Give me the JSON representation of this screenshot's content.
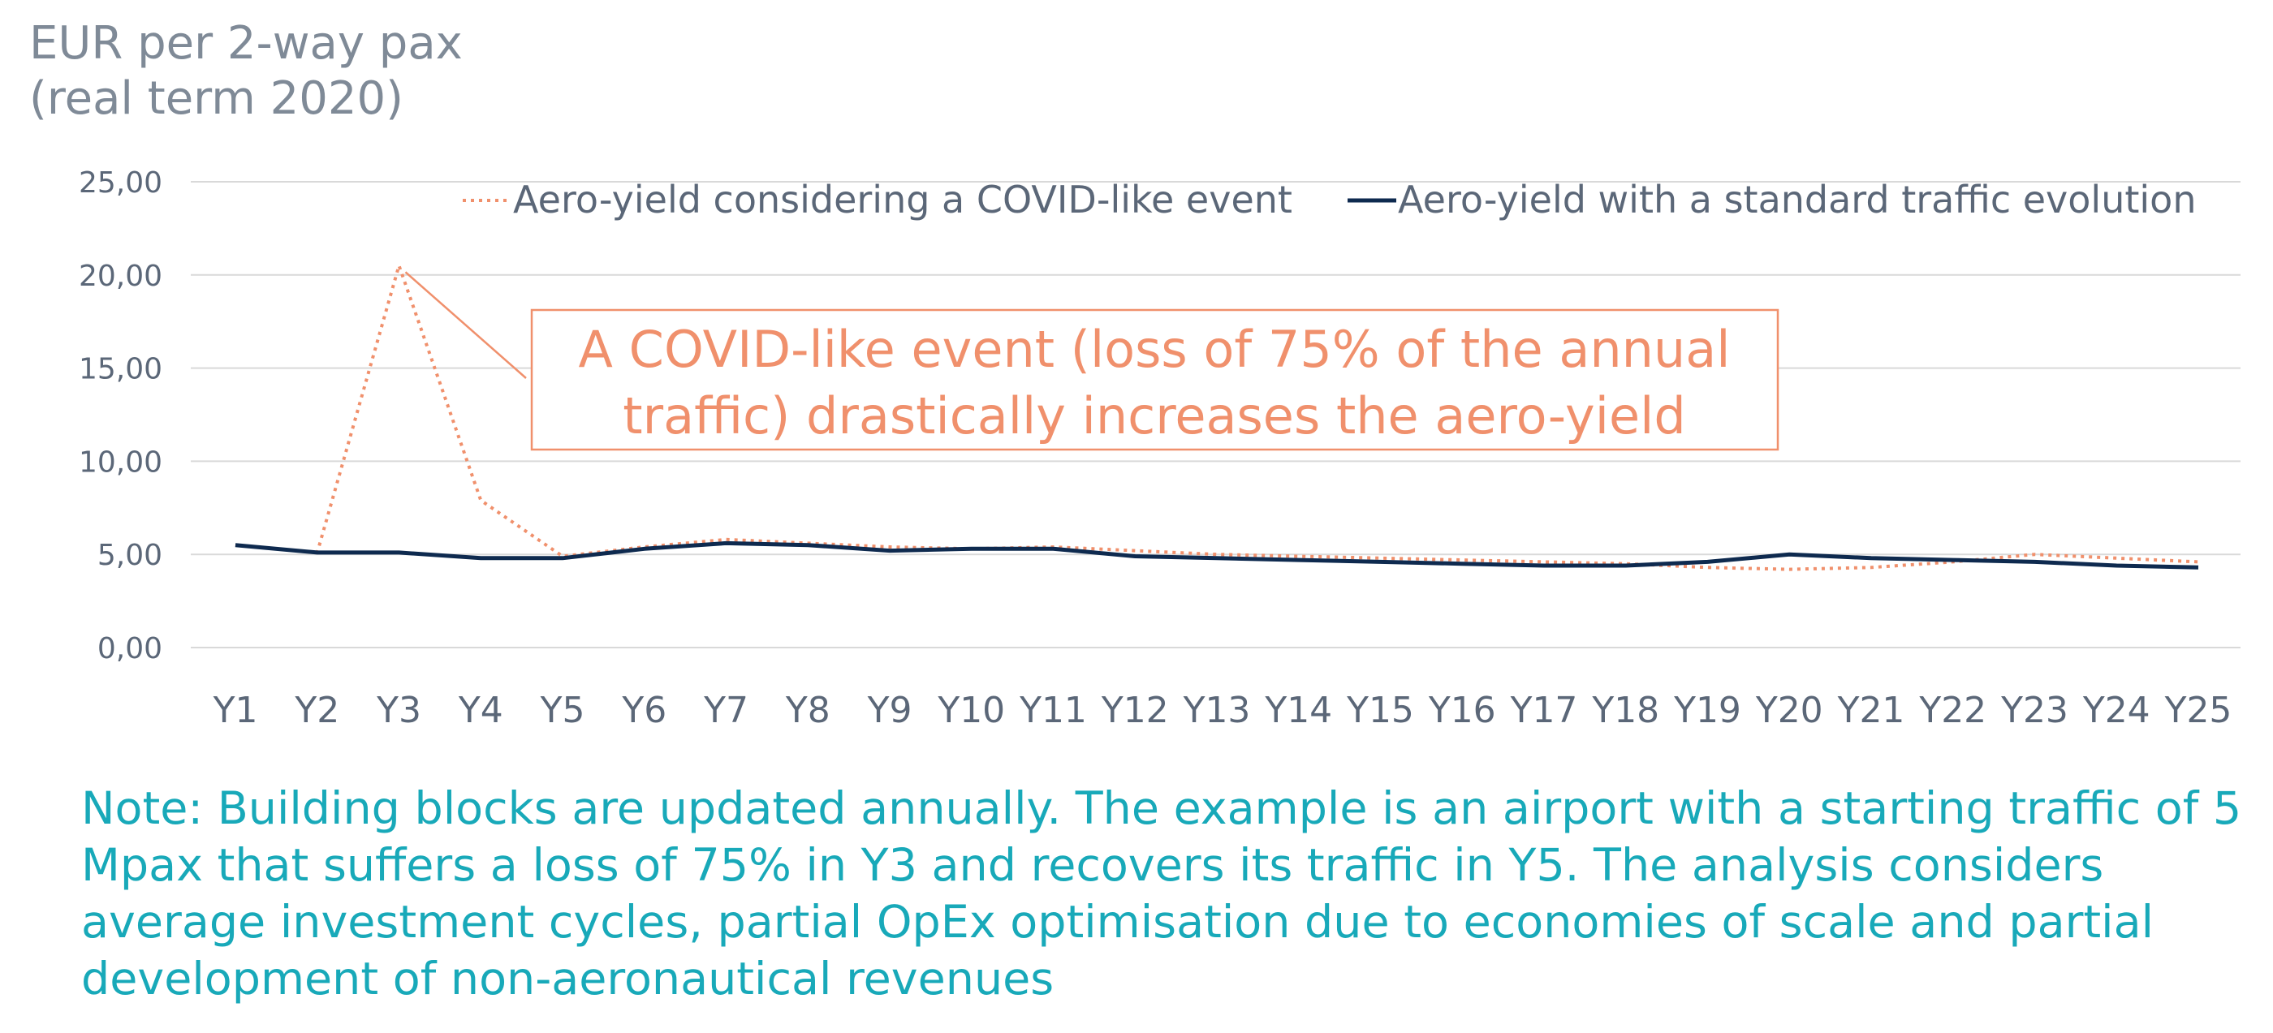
{
  "chart_data": {
    "type": "line",
    "ylabel_lines": [
      "EUR per 2-way pax",
      "(real term 2020)"
    ],
    "categories": [
      "Y1",
      "Y2",
      "Y3",
      "Y4",
      "Y5",
      "Y6",
      "Y7",
      "Y8",
      "Y9",
      "Y10",
      "Y11",
      "Y12",
      "Y13",
      "Y14",
      "Y15",
      "Y16",
      "Y17",
      "Y18",
      "Y19",
      "Y20",
      "Y21",
      "Y22",
      "Y23",
      "Y24",
      "Y25"
    ],
    "ylim": [
      0,
      25
    ],
    "yticks": [
      0,
      5,
      10,
      15,
      20,
      25
    ],
    "ytick_labels": [
      "0,00",
      "5,00",
      "10,00",
      "15,00",
      "20,00",
      "25,00"
    ],
    "grid": true,
    "legend_position": "top",
    "series": [
      {
        "name": "Aero-yield considering a COVID-like event",
        "color": "#f0906c",
        "style": "dotted",
        "values": [
          5.5,
          5.1,
          20.5,
          7.9,
          4.9,
          5.4,
          5.8,
          5.6,
          5.4,
          5.3,
          5.4,
          5.2,
          5.0,
          4.9,
          4.8,
          4.7,
          4.6,
          4.5,
          4.3,
          4.2,
          4.3,
          4.6,
          5.0,
          4.8,
          4.6
        ]
      },
      {
        "name": "Aero-yield with a standard traffic evolution",
        "color": "#0e2a4f",
        "style": "solid",
        "values": [
          5.5,
          5.1,
          5.1,
          4.8,
          4.8,
          5.3,
          5.6,
          5.5,
          5.2,
          5.3,
          5.3,
          4.9,
          4.8,
          4.7,
          4.6,
          4.5,
          4.4,
          4.4,
          4.6,
          5.0,
          4.8,
          4.7,
          4.6,
          4.4,
          4.3
        ]
      }
    ],
    "annotation": {
      "lines": [
        "A COVID-like event (loss of 75% of the annual",
        "traffic) drastically increases the aero-yield"
      ],
      "color": "#f0906c",
      "points_to": {
        "x": "Y3",
        "y": 20.5
      }
    }
  },
  "note": "Note: Building blocks are updated annually. The example is an airport with a starting traffic of 5 Mpax that suffers a loss of 75% in Y3 and recovers its traffic in Y5. The analysis considers average investment cycles, partial OpEx optimisation due to economies of scale and partial development of non-aeronautical revenues"
}
